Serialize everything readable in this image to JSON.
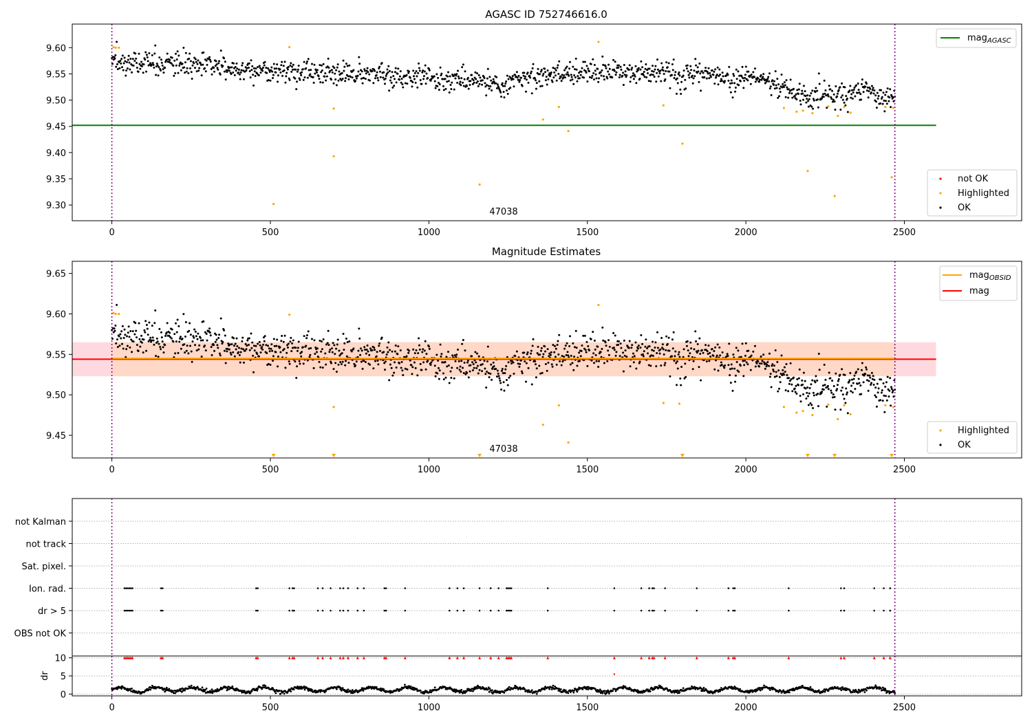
{
  "chart_data": [
    {
      "type": "scatter",
      "title": "AGASC ID 752746616.0",
      "xlim": [
        -125,
        2870
      ],
      "ylim": [
        9.27,
        9.645
      ],
      "xticks": [
        "0",
        "500",
        "1000",
        "1500",
        "2000",
        "2500"
      ],
      "yticks": [
        "9.30",
        "9.35",
        "9.40",
        "9.45",
        "9.50",
        "9.55",
        "9.60"
      ],
      "obsid_label": "47038",
      "obs_boundaries_x": [
        0,
        2470
      ],
      "lines": [
        {
          "name": "mag_AGASC",
          "y": 9.452,
          "x": [
            -125,
            2600
          ],
          "color": "#008000"
        }
      ],
      "legend_lines": [
        {
          "label": "mag",
          "sub": "AGASC",
          "color": "#008000"
        }
      ],
      "legend_points": [
        {
          "label": "not OK",
          "color": "#ff0000"
        },
        {
          "label": "Highlighted",
          "color": "#ffa500"
        },
        {
          "label": "OK",
          "color": "#000000"
        }
      ],
      "series": [
        {
          "name": "OK",
          "color": "#000000",
          "trend": [
            [
              0,
              9.573
            ],
            [
              200,
              9.568
            ],
            [
              500,
              9.556
            ],
            [
              900,
              9.546
            ],
            [
              1200,
              9.535
            ],
            [
              1350,
              9.545
            ],
            [
              1500,
              9.556
            ],
            [
              1700,
              9.553
            ],
            [
              1900,
              9.55
            ],
            [
              2050,
              9.54
            ],
            [
              2150,
              9.515
            ],
            [
              2300,
              9.51
            ],
            [
              2400,
              9.52
            ],
            [
              2470,
              9.5
            ]
          ],
          "count": 1300,
          "spread": 0.011
        },
        {
          "name": "Highlighted",
          "color": "#ffa500",
          "points": [
            [
              5,
              9.601
            ],
            [
              12,
              9.6
            ],
            [
              22,
              9.6
            ],
            [
              510,
              9.302
            ],
            [
              560,
              9.601
            ],
            [
              700,
              9.393
            ],
            [
              700,
              9.484
            ],
            [
              1160,
              9.339
            ],
            [
              1360,
              9.463
            ],
            [
              1410,
              9.487
            ],
            [
              1440,
              9.441
            ],
            [
              1535,
              9.611
            ],
            [
              1740,
              9.49
            ],
            [
              1800,
              9.417
            ],
            [
              2120,
              9.485
            ],
            [
              2160,
              9.478
            ],
            [
              2180,
              9.48
            ],
            [
              2195,
              9.365
            ],
            [
              2210,
              9.475
            ],
            [
              2260,
              9.488
            ],
            [
              2280,
              9.317
            ],
            [
              2290,
              9.47
            ],
            [
              2310,
              9.487
            ],
            [
              2330,
              9.476
            ],
            [
              2440,
              9.487
            ],
            [
              2460,
              9.353
            ],
            [
              2465,
              9.485
            ]
          ]
        }
      ]
    },
    {
      "type": "scatter",
      "title": "Magnitude Estimates",
      "xlim": [
        -125,
        2870
      ],
      "ylim": [
        9.422,
        9.665
      ],
      "xticks": [
        "0",
        "500",
        "1000",
        "1500",
        "2000",
        "2500"
      ],
      "yticks": [
        "9.45",
        "9.50",
        "9.55",
        "9.60",
        "9.65"
      ],
      "obsid_label": "47038",
      "obs_boundaries_x": [
        0,
        2470
      ],
      "lines": [
        {
          "name": "mag",
          "y": 9.544,
          "x": [
            -125,
            2600
          ],
          "color": "#ff0000"
        },
        {
          "name": "mag_OBSID",
          "y": 9.545,
          "x": [
            0,
            2470
          ],
          "color": "#ffa500"
        }
      ],
      "bands": [
        {
          "y0": 9.523,
          "y1": 9.565,
          "x": [
            -125,
            2600
          ],
          "color": "#ffc0cb"
        },
        {
          "y0": 9.523,
          "y1": 9.565,
          "x": [
            0,
            2470
          ],
          "color": "#ffd7b5"
        }
      ],
      "legend_lines": [
        {
          "label": "mag",
          "sub": "OBSID",
          "color": "#ffa500"
        },
        {
          "label": "mag",
          "sub": "",
          "color": "#ff0000"
        }
      ],
      "legend_points": [
        {
          "label": "Highlighted",
          "color": "#ffa500"
        },
        {
          "label": "OK",
          "color": "#000000"
        }
      ],
      "series": [
        {
          "name": "OK",
          "color": "#000000",
          "trend": [
            [
              0,
              9.573
            ],
            [
              200,
              9.568
            ],
            [
              500,
              9.556
            ],
            [
              900,
              9.546
            ],
            [
              1200,
              9.535
            ],
            [
              1350,
              9.545
            ],
            [
              1500,
              9.556
            ],
            [
              1700,
              9.553
            ],
            [
              1900,
              9.55
            ],
            [
              2050,
              9.54
            ],
            [
              2150,
              9.515
            ],
            [
              2300,
              9.51
            ],
            [
              2400,
              9.52
            ],
            [
              2470,
              9.5
            ]
          ],
          "count": 1300,
          "spread": 0.011
        },
        {
          "name": "Highlighted",
          "color": "#ffa500",
          "points": [
            [
              5,
              9.601
            ],
            [
              12,
              9.6
            ],
            [
              22,
              9.6
            ],
            [
              560,
              9.599
            ],
            [
              700,
              9.485
            ],
            [
              1360,
              9.463
            ],
            [
              1410,
              9.487
            ],
            [
              1440,
              9.441
            ],
            [
              1535,
              9.611
            ],
            [
              1740,
              9.49
            ],
            [
              1790,
              9.489
            ],
            [
              2120,
              9.485
            ],
            [
              2160,
              9.478
            ],
            [
              2180,
              9.48
            ],
            [
              2210,
              9.475
            ],
            [
              2260,
              9.488
            ],
            [
              2290,
              9.47
            ],
            [
              2310,
              9.487
            ],
            [
              2330,
              9.476
            ],
            [
              2440,
              9.487
            ],
            [
              2465,
              9.485
            ]
          ]
        },
        {
          "name": "below range",
          "color": "#ffa500",
          "marker": "triangle",
          "points_x": [
            510,
            700,
            1160,
            1800,
            2195,
            2280,
            2460
          ]
        }
      ]
    },
    {
      "type": "scatter",
      "title": "",
      "xlim": [
        -125,
        2870
      ],
      "xticks": [
        "0",
        "500",
        "1000",
        "1500",
        "2000",
        "2500"
      ],
      "obs_boundaries_x": [
        0,
        2470
      ],
      "flag_rows": [
        "not Kalman",
        "not track",
        "Sat. pixel.",
        "Ion. rad.",
        "dr > 5",
        "OBS not OK"
      ],
      "flagged_x": [
        40,
        45,
        50,
        55,
        60,
        65,
        155,
        160,
        455,
        460,
        560,
        570,
        575,
        650,
        665,
        690,
        720,
        730,
        745,
        775,
        795,
        860,
        865,
        925,
        1065,
        1090,
        1110,
        1160,
        1195,
        1220,
        1245,
        1250,
        1255,
        1260,
        1375,
        1585,
        1670,
        1695,
        1705,
        1710,
        1745,
        1845,
        1945,
        1960,
        1965,
        2135,
        2300,
        2310,
        2405,
        2435,
        2455
      ],
      "dr_panel": {
        "ylabel": "dr",
        "yticks": [
          "0",
          "5",
          "10"
        ],
        "ylim": [
          -0.5,
          10.5
        ],
        "clip_value": 10,
        "baseline": 1.2,
        "outlier": [
          1585,
          5.5
        ],
        "marker_colors": {
          "flagged": "#ff0000",
          "ok": "#000000"
        }
      }
    }
  ]
}
